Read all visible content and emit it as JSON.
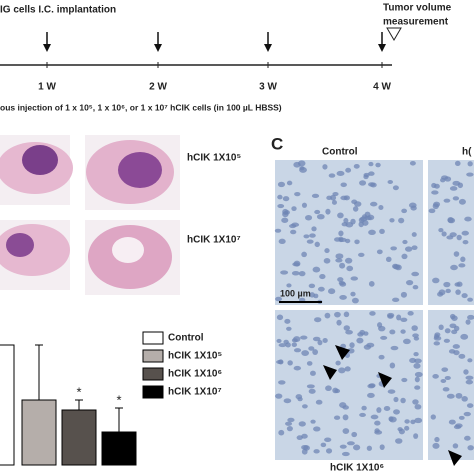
{
  "figure": {
    "timeline": {
      "title": "IG cells I.C. implantation",
      "end_label": [
        "Tumor volume",
        "measurement"
      ],
      "weeks": [
        "1 W",
        "2 W",
        "3 W",
        "4 W"
      ],
      "injection": "ous injection of 1 x 10⁵, 1 x 10⁶, or 1 x 10⁷ hCIK cells (in 100 µL HBSS)"
    },
    "panel_b_labels": [
      "hCIK 1X10⁵",
      "hCIK 1X10⁷"
    ],
    "panel_c": {
      "letter": "C",
      "top_labels": [
        "Control",
        "h("
      ],
      "scale_bar": "100 µm",
      "bottom_label": "hCIK 1X10⁶"
    }
  },
  "chart_data": {
    "type": "bar",
    "categories": [
      "Control",
      "hCIK 1X10⁵",
      "hCIK 1X10⁶",
      "hCIK 1X10⁷"
    ],
    "values": [
      120,
      65,
      55,
      33
    ],
    "errors": [
      null,
      55,
      10,
      24
    ],
    "significance": [
      null,
      null,
      "*",
      "*"
    ],
    "colors": [
      "#ffffff",
      "#b5aeaa",
      "#57514d",
      "#000000"
    ],
    "ylim": [
      0,
      130
    ]
  }
}
